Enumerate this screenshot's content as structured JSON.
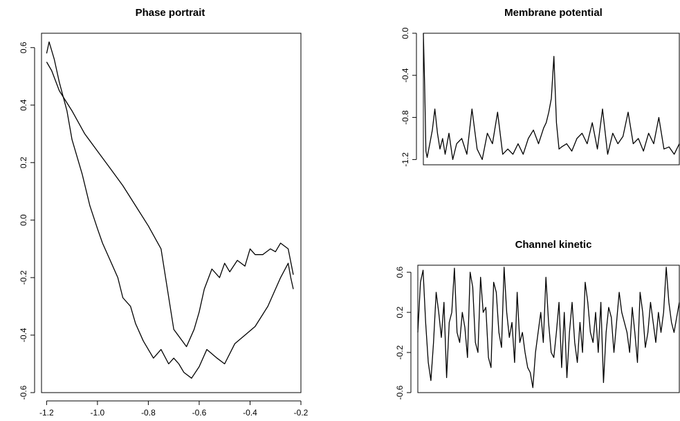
{
  "chart_data": [
    {
      "id": "phase",
      "type": "line",
      "title": "Phase portrait",
      "xlabel": "",
      "ylabel": "",
      "xlim": [
        -1.22,
        -0.2
      ],
      "ylim": [
        -0.6,
        0.65
      ],
      "xticks": [
        "-1.2",
        "-1.0",
        "-0.8",
        "-0.6",
        "-0.4",
        "-0.2"
      ],
      "xtick_values": [
        -1.2,
        -1.0,
        -0.8,
        -0.6,
        -0.4,
        -0.2
      ],
      "yticks": [
        "-0.6",
        "-0.4",
        "-0.2",
        "0.0",
        "0.2",
        "0.4",
        "0.6"
      ],
      "ytick_values": [
        -0.6,
        -0.4,
        -0.2,
        0.0,
        0.2,
        0.4,
        0.6
      ],
      "box": "full",
      "series": [
        {
          "x": [
            -1.2,
            -1.19,
            -1.17,
            -1.15,
            -1.12,
            -1.1,
            -1.06,
            -1.03,
            -1.0,
            -0.98,
            -0.95,
            -0.92,
            -0.9,
            -0.87,
            -0.85,
            -0.82,
            -0.78,
            -0.75,
            -0.72,
            -0.7,
            -0.68,
            -0.66,
            -0.63,
            -0.6,
            -0.57,
            -0.53,
            -0.5,
            -0.46,
            -0.42,
            -0.38,
            -0.33,
            -0.28,
            -0.25,
            -0.24,
            -0.23
          ],
          "y": [
            0.58,
            0.62,
            0.56,
            0.48,
            0.38,
            0.28,
            0.16,
            0.05,
            -0.03,
            -0.08,
            -0.14,
            -0.2,
            -0.27,
            -0.3,
            -0.36,
            -0.42,
            -0.48,
            -0.45,
            -0.5,
            -0.48,
            -0.5,
            -0.53,
            -0.55,
            -0.51,
            -0.45,
            -0.48,
            -0.5,
            -0.43,
            -0.4,
            -0.37,
            -0.3,
            -0.2,
            -0.15,
            -0.2,
            -0.24
          ]
        },
        {
          "x": [
            -0.23,
            -0.25,
            -0.28,
            -0.3,
            -0.32,
            -0.35,
            -0.38,
            -0.4,
            -0.42,
            -0.45,
            -0.48,
            -0.5,
            -0.52,
            -0.55,
            -0.58,
            -0.6,
            -0.62,
            -0.65,
            -0.7,
            -0.75,
            -0.8,
            -0.85,
            -0.9,
            -0.95,
            -1.0,
            -1.05,
            -1.1,
            -1.15,
            -1.18,
            -1.2
          ],
          "y": [
            -0.19,
            -0.1,
            -0.08,
            -0.11,
            -0.1,
            -0.12,
            -0.12,
            -0.1,
            -0.16,
            -0.14,
            -0.18,
            -0.15,
            -0.2,
            -0.17,
            -0.24,
            -0.32,
            -0.38,
            -0.44,
            -0.38,
            -0.1,
            -0.02,
            0.05,
            0.12,
            0.18,
            0.24,
            0.3,
            0.38,
            0.45,
            0.52,
            0.55
          ]
        }
      ]
    },
    {
      "id": "membrane",
      "type": "line",
      "title": "Membrane potential",
      "xlabel": "",
      "ylabel": "",
      "xlim": [
        0,
        1000
      ],
      "ylim": [
        -1.25,
        0.0
      ],
      "xticks": [],
      "yticks": [
        "0.0",
        "-0.4",
        "-0.8",
        "-1.2"
      ],
      "ytick_values": [
        0.0,
        -0.4,
        -0.8,
        -1.2
      ],
      "box": "full",
      "x": [
        0,
        5,
        10,
        15,
        25,
        35,
        45,
        55,
        65,
        75,
        85,
        100,
        115,
        130,
        150,
        170,
        190,
        210,
        230,
        250,
        270,
        290,
        310,
        330,
        350,
        370,
        390,
        410,
        430,
        450,
        470,
        480,
        490,
        500,
        510,
        520,
        530,
        540,
        560,
        580,
        600,
        620,
        640,
        660,
        680,
        700,
        720,
        740,
        760,
        780,
        800,
        820,
        840,
        860,
        880,
        900,
        920,
        940,
        960,
        980,
        1000
      ],
      "y": [
        0.0,
        -0.5,
        -1.12,
        -1.18,
        -1.05,
        -0.92,
        -0.72,
        -0.95,
        -1.1,
        -1.0,
        -1.15,
        -0.95,
        -1.2,
        -1.05,
        -1.0,
        -1.15,
        -0.72,
        -1.1,
        -1.2,
        -0.95,
        -1.05,
        -0.75,
        -1.15,
        -1.1,
        -1.15,
        -1.05,
        -1.15,
        -1.0,
        -0.92,
        -1.05,
        -0.9,
        -0.85,
        -0.75,
        -0.62,
        -0.22,
        -0.85,
        -1.1,
        -1.08,
        -1.05,
        -1.12,
        -1.0,
        -0.95,
        -1.05,
        -0.85,
        -1.1,
        -0.72,
        -1.15,
        -0.95,
        -1.05,
        -0.98,
        -0.75,
        -1.05,
        -1.0,
        -1.12,
        -0.95,
        -1.05,
        -0.8,
        -1.1,
        -1.08,
        -1.15,
        -1.05
      ]
    },
    {
      "id": "channel",
      "type": "line",
      "title": "Channel kinetic",
      "xlabel": "",
      "ylabel": "",
      "xlim": [
        0,
        1000
      ],
      "ylim": [
        -0.6,
        0.67
      ],
      "xticks": [],
      "yticks": [
        "0.6",
        "0.2",
        "-0.2",
        "-0.6"
      ],
      "ytick_values": [
        0.6,
        0.2,
        -0.2,
        -0.6
      ],
      "box": "full",
      "x": [
        0,
        10,
        20,
        30,
        40,
        50,
        60,
        70,
        80,
        90,
        100,
        110,
        120,
        130,
        140,
        150,
        160,
        170,
        180,
        190,
        200,
        210,
        220,
        230,
        240,
        250,
        260,
        270,
        280,
        290,
        300,
        310,
        320,
        330,
        340,
        350,
        360,
        370,
        380,
        390,
        400,
        410,
        420,
        430,
        440,
        450,
        460,
        470,
        480,
        490,
        500,
        510,
        520,
        530,
        540,
        550,
        560,
        570,
        580,
        590,
        600,
        610,
        620,
        630,
        640,
        650,
        660,
        670,
        680,
        690,
        700,
        710,
        720,
        730,
        740,
        750,
        760,
        770,
        780,
        790,
        800,
        810,
        820,
        830,
        840,
        850,
        860,
        870,
        880,
        890,
        900,
        910,
        920,
        930,
        940,
        950,
        960,
        970,
        980,
        990,
        1000
      ],
      "y": [
        0.0,
        0.5,
        0.62,
        0.1,
        -0.3,
        -0.48,
        -0.1,
        0.4,
        0.2,
        -0.05,
        0.3,
        -0.45,
        0.1,
        0.2,
        0.64,
        0.0,
        -0.1,
        0.2,
        0.05,
        -0.25,
        0.6,
        0.45,
        -0.1,
        -0.2,
        0.55,
        0.2,
        0.25,
        -0.25,
        -0.35,
        0.5,
        0.4,
        0.0,
        -0.15,
        0.65,
        0.2,
        -0.05,
        0.1,
        -0.3,
        0.4,
        -0.1,
        0.0,
        -0.2,
        -0.35,
        -0.4,
        -0.55,
        -0.2,
        0.0,
        0.2,
        -0.1,
        0.55,
        0.1,
        -0.2,
        -0.25,
        0.0,
        0.3,
        -0.35,
        0.2,
        -0.45,
        0.0,
        0.3,
        -0.1,
        -0.3,
        0.1,
        -0.2,
        0.5,
        0.3,
        0.0,
        -0.1,
        0.2,
        -0.2,
        0.3,
        -0.5,
        0.0,
        0.25,
        0.15,
        -0.2,
        0.1,
        0.4,
        0.2,
        0.1,
        0.0,
        -0.2,
        0.25,
        0.0,
        -0.3,
        0.4,
        0.2,
        -0.15,
        0.0,
        0.3,
        0.1,
        -0.1,
        0.2,
        0.0,
        0.2,
        0.65,
        0.3,
        0.1,
        0.0,
        0.15,
        0.3
      ]
    }
  ]
}
